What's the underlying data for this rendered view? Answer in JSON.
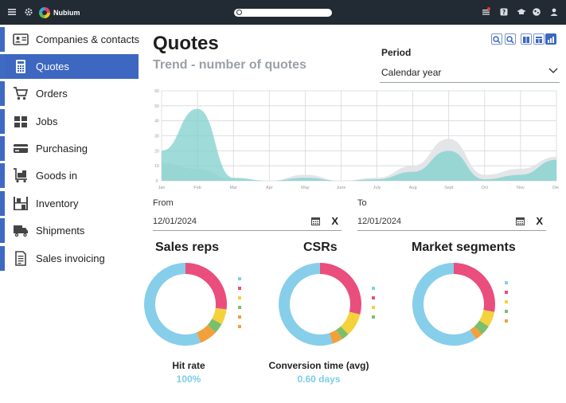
{
  "topbar": {
    "brand": "Nubium",
    "search": {
      "placeholder": ""
    },
    "icons": [
      "menu-icon",
      "settings-icon",
      "notifications-icon",
      "help-icon",
      "training-icon",
      "community-icon",
      "user-icon"
    ]
  },
  "sidebar": {
    "items": [
      {
        "label": "Companies & contacts",
        "icon": "contact-card-icon",
        "active": false
      },
      {
        "label": "Quotes",
        "icon": "calculator-icon",
        "active": true
      },
      {
        "label": "Orders",
        "icon": "cart-icon",
        "active": false
      },
      {
        "label": "Jobs",
        "icon": "jobs-icon",
        "active": false
      },
      {
        "label": "Purchasing",
        "icon": "purchasing-icon",
        "active": false
      },
      {
        "label": "Goods in",
        "icon": "goods-in-icon",
        "active": false
      },
      {
        "label": "Inventory",
        "icon": "inventory-icon",
        "active": false
      },
      {
        "label": "Shipments",
        "icon": "truck-icon",
        "active": false
      },
      {
        "label": "Sales invoicing",
        "icon": "invoice-icon",
        "active": false
      }
    ]
  },
  "main": {
    "title": "Quotes",
    "subtitle": "Trend - number of quotes",
    "period": {
      "label": "Period",
      "value": "Calendar year"
    },
    "toolbar": [
      "zoom-in-icon",
      "zoom-out-icon",
      "grid-view-icon",
      "table-view-icon",
      "chart-view-icon"
    ],
    "from": {
      "label": "From",
      "value": "12/01/2024",
      "clear": "X"
    },
    "to": {
      "label": "To",
      "value": "12/01/2024",
      "clear": "X"
    },
    "panels": [
      {
        "title": "Sales reps",
        "metric_label": "Hit rate",
        "metric_value": "100%"
      },
      {
        "title": "CSRs",
        "metric_label": "Conversion time (avg)",
        "metric_value": "0.60 days"
      },
      {
        "title": "Market segments",
        "metric_label": "",
        "metric_value": ""
      }
    ]
  },
  "colors": {
    "accent": "#3d67c0",
    "topbar": "#222a33",
    "teal": "#7fd0cc",
    "grey_area": "#e3e4e8",
    "donut_blue": "#87ceeb",
    "donut_pink": "#e94e7d",
    "donut_yellow": "#f4d23c",
    "donut_green": "#7bbf6a",
    "donut_orange": "#f2a03d"
  },
  "chart_data": [
    {
      "type": "area",
      "title": "Trend - number of quotes",
      "categories": [
        "Jan",
        "Feb",
        "Mar",
        "Apr",
        "May",
        "June",
        "July",
        "Aug",
        "Sept",
        "Oct",
        "Nov",
        "Dec"
      ],
      "y_ticks": [
        "0",
        "10",
        "20",
        "30",
        "40",
        "50",
        "60"
      ],
      "ylim": [
        0,
        60
      ],
      "grid": true,
      "series": [
        {
          "values": [
            20,
            48,
            2,
            0,
            2,
            0,
            1,
            6,
            20,
            1,
            4,
            14
          ],
          "color": "#7fd0cc"
        },
        {
          "values": [
            12,
            8,
            1,
            0,
            4,
            0,
            2,
            10,
            28,
            4,
            8,
            16
          ],
          "color": "#e3e4e8"
        }
      ]
    },
    {
      "type": "pie",
      "title": "Sales reps",
      "values": [
        56,
        27,
        6,
        4,
        3,
        4
      ],
      "colors": [
        "#87ceeb",
        "#e94e7d",
        "#f4d23c",
        "#7bbf6a",
        "#f2a03d",
        "#f2a03d"
      ],
      "legend_colors": [
        "#87ceeb",
        "#e94e7d",
        "#f4d23c",
        "#7bbf6a",
        "#f2a03d",
        "#f2a03d"
      ]
    },
    {
      "type": "pie",
      "title": "CSRs",
      "values": [
        55,
        29,
        9,
        3,
        4
      ],
      "colors": [
        "#87ceeb",
        "#e94e7d",
        "#f4d23c",
        "#7bbf6a",
        "#f2a03d"
      ],
      "legend_colors": [
        "#87ceeb",
        "#e94e7d",
        "#f4d23c",
        "#7bbf6a"
      ]
    },
    {
      "type": "pie",
      "title": "Market segments",
      "values": [
        59,
        28,
        6,
        4,
        3
      ],
      "colors": [
        "#87ceeb",
        "#e94e7d",
        "#f4d23c",
        "#7bbf6a",
        "#f2a03d"
      ],
      "legend_colors": [
        "#87ceeb",
        "#e94e7d",
        "#f4d23c",
        "#7bbf6a",
        "#f2a03d"
      ]
    }
  ]
}
